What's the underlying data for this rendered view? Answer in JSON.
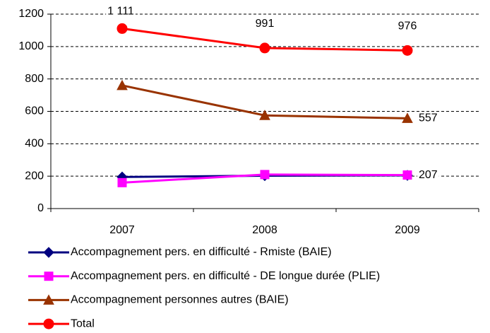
{
  "chart_data": {
    "type": "line",
    "categories": [
      "2007",
      "2008",
      "2009"
    ],
    "series": [
      {
        "name": "Accompagnement pers. en difficulté - Rmiste (BAIE)",
        "color": "#000080",
        "marker": "diamond",
        "values": [
          195,
          203,
          205
        ]
      },
      {
        "name": "Accompagnement pers. en difficulté -  DE longue durée (PLIE)",
        "color": "#ff00ff",
        "marker": "square",
        "values": [
          160,
          210,
          207
        ],
        "value_labels": [
          null,
          null,
          "207"
        ]
      },
      {
        "name": "Accompagnement personnes autres (BAIE)",
        "color": "#993300",
        "marker": "triangle",
        "values": [
          760,
          575,
          557
        ],
        "value_labels": [
          null,
          null,
          "557"
        ]
      },
      {
        "name": "Total",
        "color": "#ff0000",
        "marker": "circle",
        "values": [
          1111,
          991,
          976
        ],
        "value_labels": [
          "1 111",
          "991",
          "976"
        ]
      }
    ],
    "ylim": [
      0,
      1200
    ],
    "yticks": [
      0,
      200,
      400,
      600,
      800,
      1000,
      1200
    ],
    "grid": true
  }
}
